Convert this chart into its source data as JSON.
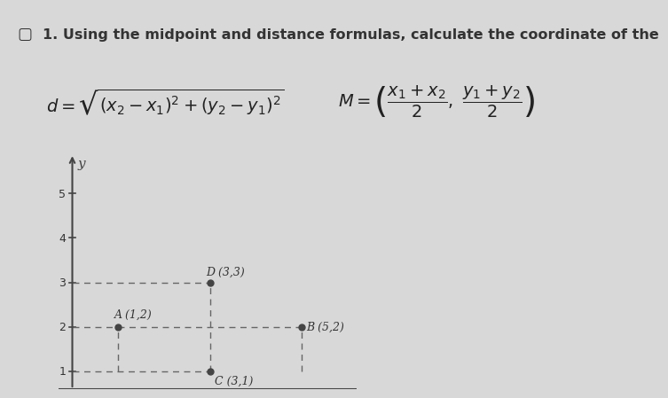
{
  "title": "1. Using the midpoint and distance formulas, calculate the coordinate of the",
  "background_color": "#d8d8d8",
  "plot_bg": "#d8d8d8",
  "points": {
    "A": [
      1,
      2
    ],
    "B": [
      5,
      2
    ],
    "C": [
      3,
      1
    ],
    "D": [
      3,
      3
    ]
  },
  "point_labels": {
    "A": "A (1,2)",
    "B": "B (5,2)",
    "C": "C (3,1)",
    "D": "D (3,3)"
  },
  "dashed_segs": [
    [
      [
        0,
        3
      ],
      [
        3,
        3
      ]
    ],
    [
      [
        0,
        1
      ],
      [
        2,
        2
      ]
    ],
    [
      [
        1,
        5
      ],
      [
        2,
        2
      ]
    ],
    [
      [
        0,
        3
      ],
      [
        1,
        1
      ]
    ],
    [
      [
        3,
        3
      ],
      [
        1,
        3
      ]
    ],
    [
      [
        1,
        1
      ],
      [
        1,
        2
      ]
    ],
    [
      [
        5,
        5
      ],
      [
        1,
        2
      ]
    ]
  ],
  "ylim": [
    0.6,
    5.9
  ],
  "xlim": [
    -0.3,
    6.2
  ],
  "yticks": [
    1,
    2,
    3,
    4,
    5
  ],
  "point_color": "#444444",
  "dashed_color": "#666666",
  "axis_color": "#444444",
  "text_color": "#333333",
  "formula_color": "#222222",
  "font_size_title": 11.5,
  "font_size_formula": 12,
  "font_size_labels": 9,
  "font_size_ticks": 9
}
